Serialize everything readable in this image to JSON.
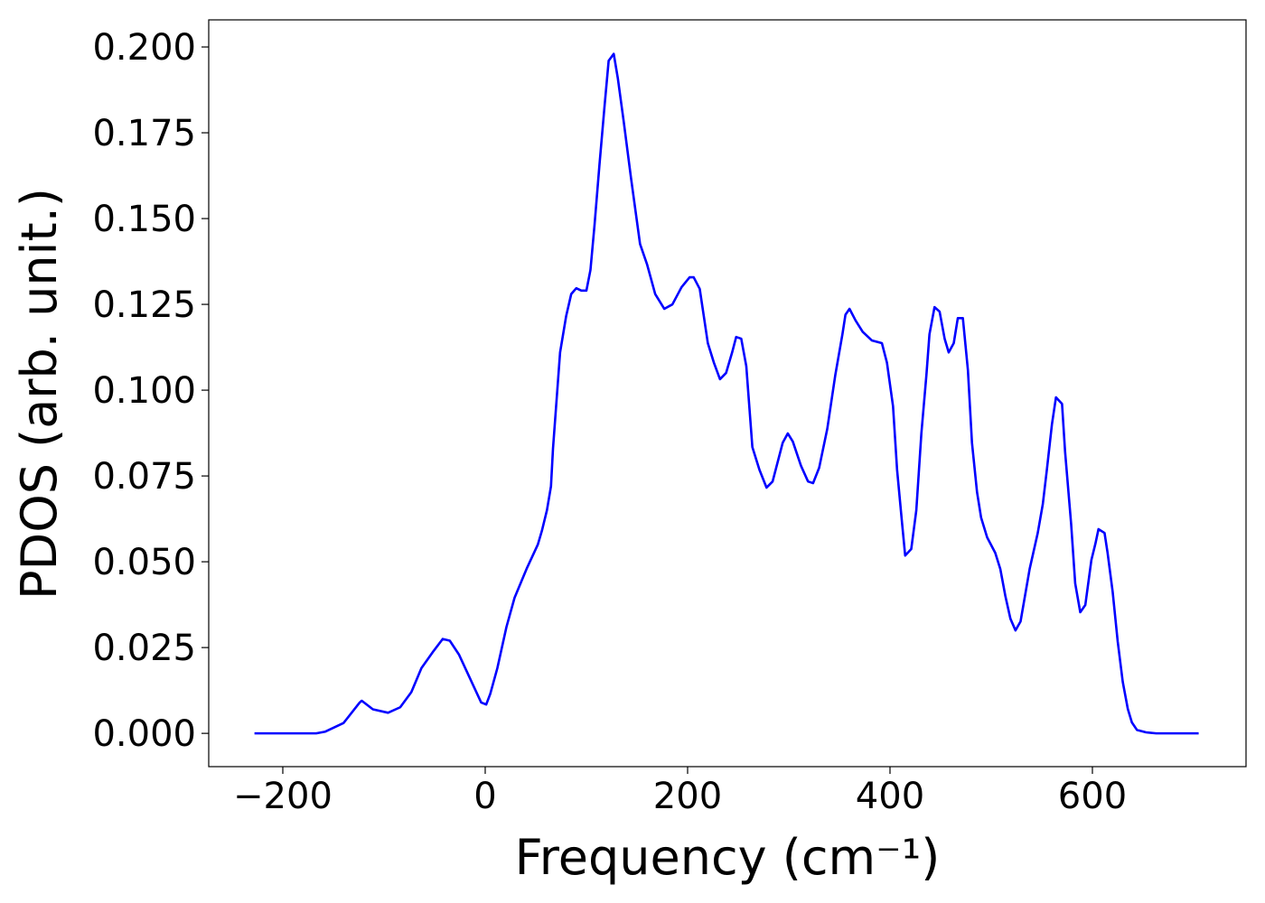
{
  "chart_data": {
    "type": "line",
    "xlabel": "Frequency (cm⁻¹)",
    "ylabel": "PDOS (arb. unit.)",
    "color": "#0000ff",
    "grid": false,
    "xlim": [
      -273.2,
      751.8
    ],
    "ylim": [
      -0.0097,
      0.2079
    ],
    "xticks": [
      {
        "value": -200,
        "label": "−200"
      },
      0,
      200,
      400,
      600
    ],
    "yticks": [
      {
        "value": 0,
        "label": "0.000"
      },
      {
        "value": 0.025,
        "label": "0.025"
      },
      {
        "value": 0.05,
        "label": "0.050"
      },
      {
        "value": 0.075,
        "label": "0.075"
      },
      {
        "value": 0.1,
        "label": "0.100"
      },
      {
        "value": 0.125,
        "label": "0.125"
      },
      {
        "value": 0.15,
        "label": "0.150"
      },
      {
        "value": 0.175,
        "label": "0.175"
      },
      {
        "value": 0.2,
        "label": "0.200"
      }
    ],
    "x": [
      -228,
      -167,
      -158,
      -140,
      -124,
      -122,
      -111,
      -96,
      -84,
      -73,
      -63,
      -51,
      -42,
      -35,
      -26,
      -15,
      -4,
      1,
      5,
      12,
      21,
      29,
      41,
      52,
      56,
      61,
      65,
      67,
      74,
      80,
      85,
      90,
      95,
      100,
      104,
      108,
      113,
      118,
      122,
      127,
      131,
      137,
      144,
      153,
      160,
      168,
      177,
      185,
      194,
      202,
      206,
      212,
      220,
      226,
      232,
      238,
      244,
      248,
      253,
      258,
      264,
      271,
      278,
      284,
      294,
      299,
      304,
      312,
      319,
      324,
      330,
      338,
      346,
      353,
      356,
      360,
      366,
      373,
      382,
      392,
      397,
      403,
      407,
      412,
      415,
      421,
      426,
      431,
      436,
      439,
      444,
      449,
      454,
      458,
      463,
      467,
      472,
      477,
      481,
      486,
      490,
      496,
      504,
      509,
      514,
      519,
      524,
      529,
      538,
      546,
      551,
      555,
      560,
      564,
      570,
      573,
      579,
      583,
      588,
      593,
      599,
      603,
      606,
      612,
      615,
      620,
      625,
      630,
      635,
      639,
      644,
      653,
      663,
      705
    ],
    "values": [
      0,
      0,
      0.0005,
      0.003,
      0.009,
      0.0095,
      0.007,
      0.006,
      0.0076,
      0.012,
      0.019,
      0.024,
      0.0275,
      0.027,
      0.023,
      0.016,
      0.009,
      0.0084,
      0.0115,
      0.019,
      0.031,
      0.0395,
      0.048,
      0.055,
      0.059,
      0.065,
      0.072,
      0.083,
      0.111,
      0.1216,
      0.128,
      0.1297,
      0.129,
      0.129,
      0.135,
      0.148,
      0.166,
      0.183,
      0.196,
      0.198,
      0.191,
      0.178,
      0.162,
      0.1426,
      0.1366,
      0.128,
      0.1237,
      0.125,
      0.13,
      0.1329,
      0.1329,
      0.1295,
      0.1137,
      0.108,
      0.1032,
      0.105,
      0.111,
      0.1155,
      0.115,
      0.107,
      0.0834,
      0.0768,
      0.0716,
      0.0734,
      0.0847,
      0.0874,
      0.085,
      0.078,
      0.0734,
      0.0729,
      0.0774,
      0.0887,
      0.1045,
      0.1163,
      0.122,
      0.1237,
      0.1203,
      0.117,
      0.1145,
      0.1137,
      0.108,
      0.0953,
      0.0768,
      0.061,
      0.0518,
      0.0537,
      0.065,
      0.0874,
      0.1045,
      0.1163,
      0.1242,
      0.1229,
      0.115,
      0.111,
      0.1137,
      0.121,
      0.121,
      0.1058,
      0.0847,
      0.0703,
      0.0629,
      0.0571,
      0.0526,
      0.0479,
      0.04,
      0.0334,
      0.03,
      0.0326,
      0.0479,
      0.0584,
      0.0668,
      0.0768,
      0.09,
      0.0979,
      0.096,
      0.0821,
      0.061,
      0.0437,
      0.0353,
      0.0374,
      0.0505,
      0.0553,
      0.0595,
      0.0584,
      0.0526,
      0.0413,
      0.0268,
      0.015,
      0.0071,
      0.0032,
      0.001,
      0.0003,
      0,
      0
    ]
  }
}
